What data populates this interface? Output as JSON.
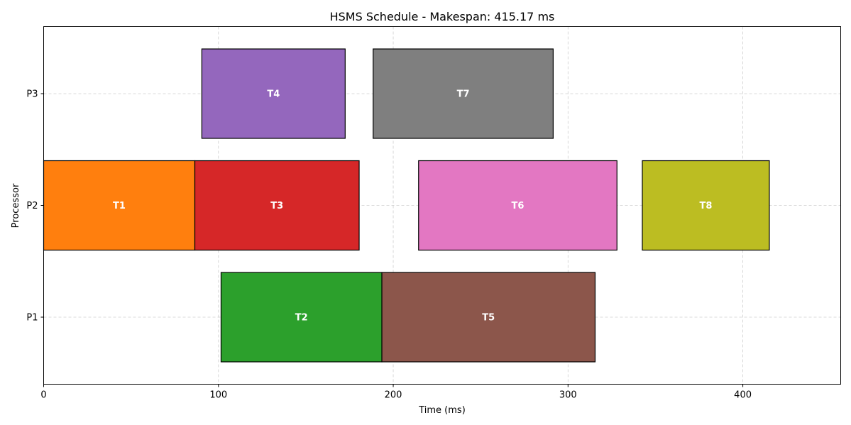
{
  "chart_data": {
    "type": "gantt",
    "title": "HSMS Schedule - Makespan: 415.17 ms",
    "xlabel": "Time (ms)",
    "ylabel": "Processor",
    "xlim": [
      0,
      456
    ],
    "xticks": [
      0,
      100,
      200,
      300,
      400
    ],
    "processors": [
      "P1",
      "P2",
      "P3"
    ],
    "grid": true,
    "tasks": [
      {
        "name": "T1",
        "processor": "P2",
        "start": 0,
        "end": 86.5,
        "color": "#ff7f0e"
      },
      {
        "name": "T2",
        "processor": "P1",
        "start": 101.5,
        "end": 193.5,
        "color": "#2ca02c"
      },
      {
        "name": "T3",
        "processor": "P2",
        "start": 86.5,
        "end": 180.5,
        "color": "#d62728"
      },
      {
        "name": "T4",
        "processor": "P3",
        "start": 90.5,
        "end": 172.5,
        "color": "#9467bd"
      },
      {
        "name": "T5",
        "processor": "P1",
        "start": 193.5,
        "end": 315.5,
        "color": "#8c564b"
      },
      {
        "name": "T6",
        "processor": "P2",
        "start": 214.5,
        "end": 328.0,
        "color": "#e377c2"
      },
      {
        "name": "T7",
        "processor": "P3",
        "start": 188.5,
        "end": 291.5,
        "color": "#7f7f7f"
      },
      {
        "name": "T8",
        "processor": "P2",
        "start": 342.5,
        "end": 415.17,
        "color": "#bcbd22"
      }
    ]
  }
}
